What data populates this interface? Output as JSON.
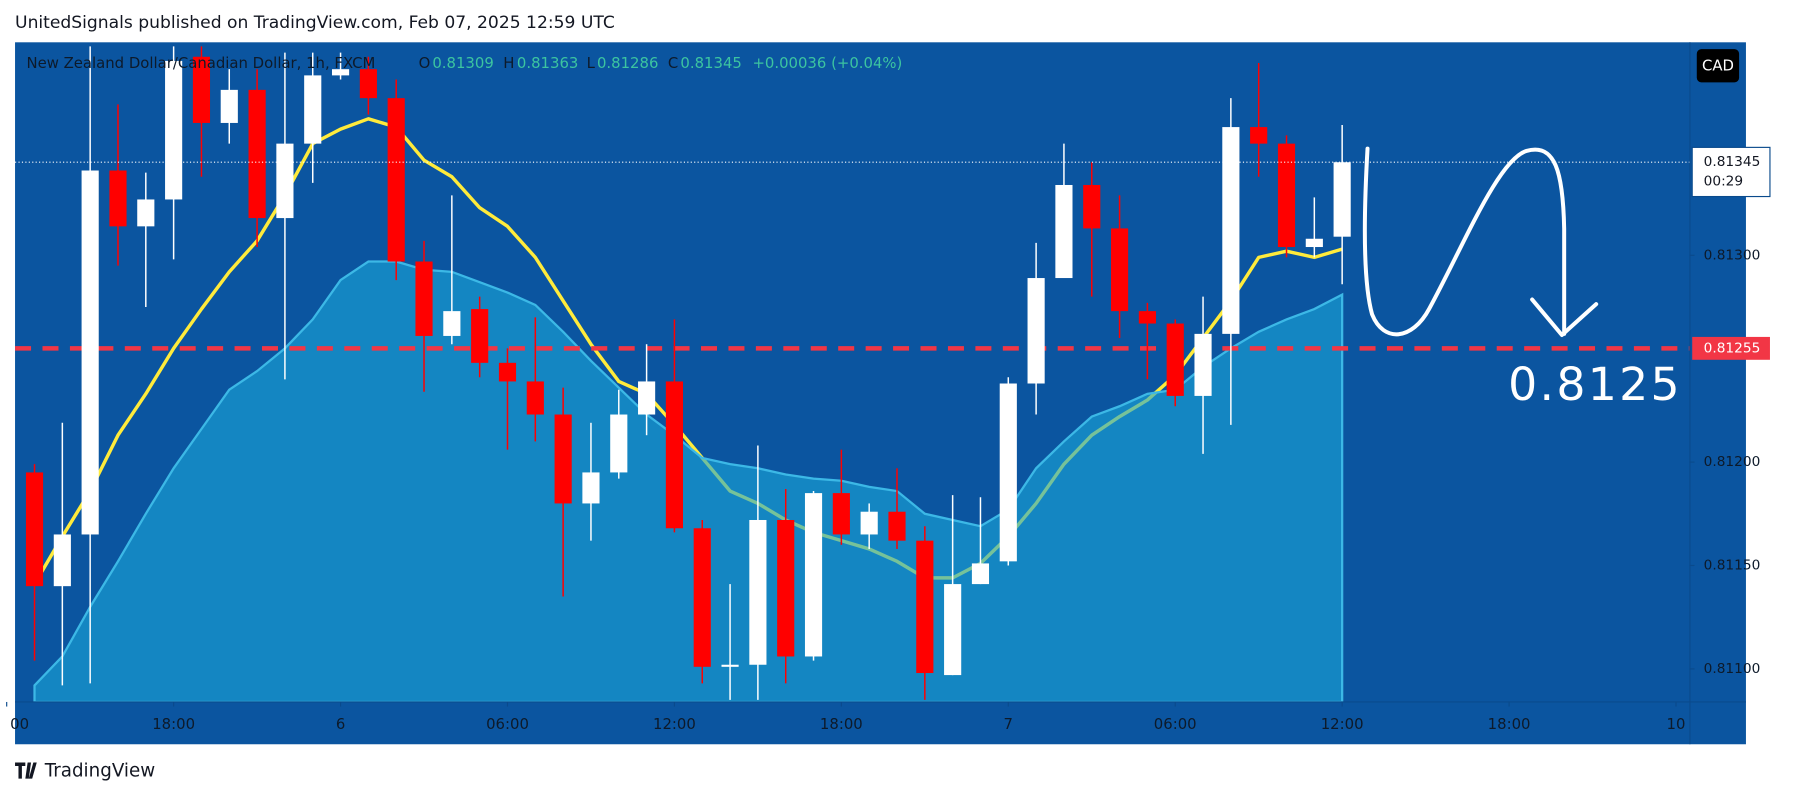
{
  "header": {
    "text": "UnitedSignals published on TradingView.com, Feb 07, 2025 12:59 UTC"
  },
  "chart_data": {
    "type": "candlestick",
    "symbol": "New Zealand Dollar/Canadian Dollar, 1h, FXCM",
    "currency": "CAD",
    "ohlc_labels": [
      "O",
      "H",
      "L",
      "C"
    ],
    "change": "+0.00036 (+0.04%)",
    "countdown": "00:29",
    "level": 0.81255,
    "annotation": "0.8125",
    "open": [
      0.81195,
      0.8114,
      0.81165,
      0.81341,
      0.81314,
      0.81327,
      0.81396,
      0.81364,
      0.8138,
      0.81318,
      0.81354,
      0.81387,
      0.8139,
      0.81376,
      0.81297,
      0.81261,
      0.81274,
      0.81248,
      0.81239,
      0.81223,
      0.8118,
      0.81195,
      0.81223,
      0.81239,
      0.81168,
      0.81101,
      0.81102,
      0.81172,
      0.81106,
      0.81185,
      0.81165,
      0.81176,
      0.81162,
      0.81097,
      0.81141,
      0.81152,
      0.81238,
      0.81289,
      0.81334,
      0.81313,
      0.81273,
      0.81267,
      0.81232,
      0.81262,
      0.81362,
      0.81354,
      0.81304,
      0.81309
    ],
    "high": [
      0.81199,
      0.81219,
      0.81401,
      0.81373,
      0.8134,
      0.81401,
      0.81401,
      0.8139,
      0.8139,
      0.81398,
      0.81398,
      0.81398,
      0.81396,
      0.81385,
      0.81307,
      0.81329,
      0.8128,
      0.81255,
      0.8127,
      0.81236,
      0.81219,
      0.81235,
      0.81257,
      0.81269,
      0.81172,
      0.81141,
      0.81208,
      0.81187,
      0.81186,
      0.81206,
      0.8118,
      0.81197,
      0.81169,
      0.81184,
      0.81183,
      0.81241,
      0.81306,
      0.81354,
      0.81345,
      0.81329,
      0.81277,
      0.81269,
      0.8128,
      0.81376,
      0.81393,
      0.81358,
      0.81328,
      0.81363
    ],
    "low": [
      0.81104,
      0.81092,
      0.81093,
      0.81295,
      0.81275,
      0.81298,
      0.81338,
      0.81354,
      0.81304,
      0.8124,
      0.81335,
      0.81385,
      0.81368,
      0.81288,
      0.81234,
      0.81257,
      0.81241,
      0.81206,
      0.8121,
      0.81135,
      0.81162,
      0.81192,
      0.81213,
      0.81166,
      0.81093,
      0.81085,
      0.81085,
      0.81093,
      0.81104,
      0.8116,
      0.81158,
      0.81158,
      0.81085,
      0.81097,
      0.81141,
      0.8115,
      0.81223,
      0.81289,
      0.8128,
      0.8126,
      0.8124,
      0.81227,
      0.81204,
      0.81218,
      0.81338,
      0.81299,
      0.81299,
      0.81286
    ],
    "close": [
      0.8114,
      0.81165,
      0.81341,
      0.81314,
      0.81327,
      0.81394,
      0.81364,
      0.8138,
      0.81318,
      0.81354,
      0.81387,
      0.8139,
      0.81376,
      0.81297,
      0.81261,
      0.81273,
      0.81248,
      0.81239,
      0.81223,
      0.8118,
      0.81195,
      0.81223,
      0.81239,
      0.81168,
      0.81101,
      0.81102,
      0.81172,
      0.81106,
      0.81185,
      0.81165,
      0.81176,
      0.81162,
      0.81098,
      0.81141,
      0.81151,
      0.81238,
      0.81289,
      0.81334,
      0.81313,
      0.81273,
      0.81267,
      0.81232,
      0.81262,
      0.81362,
      0.81354,
      0.81304,
      0.81308,
      0.81345
    ],
    "ma": [
      0.81141,
      0.81164,
      0.81186,
      0.81213,
      0.81233,
      0.81255,
      0.81274,
      0.81292,
      0.81307,
      0.81329,
      0.81354,
      0.81361,
      0.81366,
      0.81362,
      0.81346,
      0.81338,
      0.81323,
      0.81314,
      0.81299,
      0.81278,
      0.81257,
      0.81239,
      0.81233,
      0.81218,
      0.81202,
      0.81186,
      0.8118,
      0.81172,
      0.81166,
      0.81162,
      0.81158,
      0.81152,
      0.81144,
      0.81144,
      0.81151,
      0.81164,
      0.8118,
      0.81199,
      0.81213,
      0.81222,
      0.8123,
      0.81242,
      0.8126,
      0.81278,
      0.81299,
      0.81302,
      0.81299,
      0.81303
    ],
    "band": [
      0.81092,
      0.81106,
      0.8113,
      0.81152,
      0.81175,
      0.81197,
      0.81216,
      0.81235,
      0.81244,
      0.81255,
      0.81269,
      0.81288,
      0.81297,
      0.81297,
      0.81293,
      0.81292,
      0.81287,
      0.81282,
      0.81276,
      0.81263,
      0.81249,
      0.81236,
      0.81223,
      0.81213,
      0.81202,
      0.81199,
      0.81197,
      0.81194,
      0.81192,
      0.81191,
      0.81188,
      0.81186,
      0.81175,
      0.81172,
      0.81169,
      0.81177,
      0.81197,
      0.8121,
      0.81222,
      0.81227,
      0.81233,
      0.81235,
      0.81246,
      0.81255,
      0.81263,
      0.81269,
      0.81274,
      0.81281
    ],
    "colors": {
      "up": "#ffffff",
      "down": "#ff0000",
      "ma": "#ffeb3b",
      "band": "#1ba6d8",
      "level": "#f23645"
    },
    "xlim": [
      -0.7,
      59.5
    ],
    "xticks": [
      {
        "value": -1,
        "label": "00"
      },
      {
        "value": 5,
        "label": "18:00"
      },
      {
        "value": 11,
        "label": "6"
      },
      {
        "value": 17,
        "label": "06:00"
      },
      {
        "value": 23,
        "label": "12:00"
      },
      {
        "value": 29,
        "label": "18:00"
      },
      {
        "value": 35,
        "label": "7"
      },
      {
        "value": 41,
        "label": "06:00"
      },
      {
        "value": 47,
        "label": "12:00"
      },
      {
        "value": 53,
        "label": "18:00"
      },
      {
        "value": 59,
        "label": "10"
      }
    ],
    "ylim": [
      0.81084,
      0.81403
    ],
    "yticks": [
      {
        "value": 0.811,
        "label": "0.81100"
      },
      {
        "value": 0.8115,
        "label": "0.81150"
      },
      {
        "value": 0.812,
        "label": "0.81200"
      },
      {
        "value": 0.813,
        "label": "0.81300"
      }
    ]
  },
  "footer": {
    "brand": "TradingView"
  }
}
